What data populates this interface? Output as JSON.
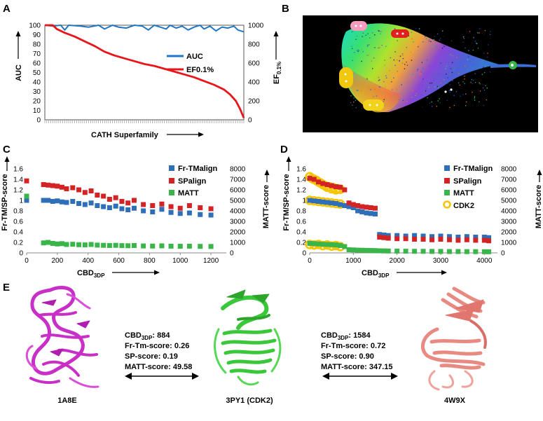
{
  "panel_letters": {
    "A": "A",
    "B": "B",
    "C": "C",
    "D": "D",
    "E": "E"
  },
  "colors": {
    "auc": "#1f77c4",
    "ef": "#e8161b",
    "fr_tmalign": "#2f6fb8",
    "spalign": "#d42325",
    "matt": "#3ab54a",
    "cdk2": "#f7c400"
  },
  "panelA": {
    "y_left_title": "AUC",
    "y_right_title_main": "EF",
    "y_right_title_sub": "0.1%",
    "x_title": "CATH Superfamily",
    "legend": [
      "AUC",
      "EF0.1%"
    ]
  },
  "panelC": {
    "y_left_title": "Fr-TM/SP-score",
    "y_right_title": "MATT-score",
    "x_title_main": "CBD",
    "x_title_sub": "3DP",
    "legend": [
      "Fr-TMalign",
      "SPalign",
      "MATT"
    ]
  },
  "panelD": {
    "y_left_title": "Fr-TM/SP-score",
    "y_right_title": "MATT-score",
    "x_title_main": "CBD",
    "x_title_sub": "3DP",
    "legend": [
      "Fr-TMalign",
      "SPalign",
      "MATT",
      "CDK2"
    ]
  },
  "panelE": {
    "structures": [
      {
        "label": "1A8E",
        "color": "#c72fc7"
      },
      {
        "label": "3PY1 (CDK2)",
        "color": "#3ac83a"
      },
      {
        "label": "4W9X",
        "color": "#e88a82"
      }
    ],
    "pair1": {
      "cbd_main": "CBD",
      "cbd_sub": "3DP",
      "cbd_value": ": 884",
      "fr_tm": "Fr-Tm-score: 0.26",
      "sp": "SP-score: 0.19",
      "matt": "MATT-score: 49.58"
    },
    "pair2": {
      "cbd_main": "CBD",
      "cbd_sub": "3DP",
      "cbd_value": ": 1584",
      "fr_tm": "Fr-Tm-score: 0.72",
      "sp": "SP-score: 0.90",
      "matt": "MATT-score: 347.15"
    }
  },
  "chart_data": [
    {
      "type": "line",
      "panel": "A",
      "xlabel": "CATH Superfamily",
      "ylabel": "AUC",
      "ylabel_right": "EF0.1%",
      "ylim": [
        0,
        100
      ],
      "ylim_right": [
        0,
        1000
      ],
      "yticks": [
        "0",
        "10",
        "20",
        "30",
        "40",
        "50",
        "60",
        "70",
        "80",
        "90",
        "100"
      ],
      "yticks_right": [
        "0",
        "200",
        "400",
        "600",
        "800",
        "1000"
      ],
      "legend_position": "center-right",
      "grid": false,
      "series": [
        {
          "name": "AUC",
          "axis": "left",
          "x": [
            0,
            4,
            8,
            10,
            12,
            18,
            22,
            27,
            30,
            34,
            37,
            41,
            45,
            49,
            52,
            55,
            58,
            61,
            63,
            66,
            69,
            72,
            75,
            78,
            80,
            83,
            86,
            89,
            92,
            95,
            97,
            100
          ],
          "values": [
            100,
            99,
            100,
            95,
            100,
            99,
            98,
            100,
            96,
            100,
            98,
            97,
            100,
            99,
            95,
            100,
            98,
            96,
            100,
            97,
            99,
            95,
            98,
            100,
            96,
            99,
            94,
            98,
            97,
            99,
            95,
            93
          ]
        },
        {
          "name": "EF0.1%",
          "axis": "right",
          "x": [
            0,
            4,
            6,
            10,
            15,
            20,
            25,
            30,
            35,
            40,
            45,
            50,
            55,
            60,
            65,
            70,
            75,
            80,
            85,
            90,
            93,
            96,
            98,
            100
          ],
          "values": [
            1000,
            1000,
            960,
            920,
            880,
            830,
            780,
            720,
            680,
            650,
            620,
            590,
            570,
            540,
            510,
            480,
            450,
            410,
            370,
            320,
            270,
            200,
            120,
            20
          ]
        }
      ]
    },
    {
      "type": "scatter",
      "panel": "C",
      "xlabel": "CBD3DP",
      "ylabel": "Fr-TM/SP-score",
      "ylabel_right": "MATT-score",
      "xlim": [
        0,
        1300
      ],
      "ylim": [
        0,
        1.6
      ],
      "ylim_right": [
        0,
        8000
      ],
      "xticks": [
        "0",
        "200",
        "400",
        "600",
        "800",
        "1000",
        "1200"
      ],
      "yticks": [
        "0",
        "0.2",
        "0.4",
        "0.6",
        "0.8",
        "1",
        "1.2",
        "1.4",
        "1.6"
      ],
      "yticks_right": [
        "0",
        "1000",
        "2000",
        "3000",
        "4000",
        "5000",
        "6000",
        "7000",
        "8000"
      ],
      "legend_position": "top-right",
      "grid": false,
      "series": [
        {
          "name": "Fr-TMalign",
          "axis": "left",
          "x": [
            0,
            110,
            140,
            170,
            200,
            230,
            260,
            300,
            340,
            380,
            420,
            460,
            500,
            540,
            580,
            620,
            660,
            700,
            760,
            820,
            880,
            940,
            1000,
            1060,
            1130,
            1200
          ],
          "values": [
            1.0,
            1.0,
            1.0,
            0.98,
            0.99,
            0.97,
            0.96,
            0.98,
            0.94,
            0.92,
            0.95,
            0.9,
            0.88,
            0.86,
            0.89,
            0.84,
            0.82,
            0.85,
            0.8,
            0.78,
            0.83,
            0.77,
            0.75,
            0.76,
            0.73,
            0.72
          ]
        },
        {
          "name": "SPalign",
          "axis": "left",
          "x": [
            0,
            110,
            140,
            170,
            200,
            230,
            260,
            300,
            340,
            380,
            420,
            460,
            500,
            540,
            580,
            620,
            660,
            700,
            760,
            820,
            880,
            940,
            1000,
            1060,
            1130,
            1200
          ],
          "values": [
            1.37,
            1.3,
            1.29,
            1.28,
            1.27,
            1.25,
            1.22,
            1.24,
            1.2,
            1.15,
            1.18,
            1.1,
            1.08,
            1.02,
            1.05,
            0.98,
            0.95,
            1.0,
            0.92,
            0.9,
            0.93,
            0.88,
            0.85,
            0.9,
            0.86,
            0.84
          ]
        },
        {
          "name": "MATT",
          "axis": "right",
          "x": [
            0,
            110,
            140,
            170,
            200,
            230,
            260,
            300,
            340,
            380,
            420,
            460,
            500,
            540,
            580,
            620,
            660,
            700,
            760,
            820,
            880,
            940,
            1000,
            1060,
            1130,
            1200
          ],
          "values": [
            5400,
            950,
            1000,
            900,
            850,
            880,
            800,
            820,
            780,
            760,
            800,
            740,
            720,
            700,
            720,
            690,
            680,
            700,
            660,
            650,
            670,
            640,
            630,
            640,
            620,
            610
          ]
        }
      ]
    },
    {
      "type": "scatter",
      "panel": "D",
      "xlabel": "CBD3DP",
      "ylabel": "Fr-TM/SP-score",
      "ylabel_right": "MATT-score",
      "xlim": [
        0,
        4300
      ],
      "ylim": [
        0,
        1.6
      ],
      "ylim_right": [
        0,
        8000
      ],
      "xticks": [
        "0",
        "1000",
        "2000",
        "3000",
        "4000"
      ],
      "yticks": [
        "0",
        "0.2",
        "0.4",
        "0.6",
        "0.8",
        "1",
        "1.2",
        "1.4",
        "1.6"
      ],
      "yticks_right": [
        "0",
        "1000",
        "2000",
        "3000",
        "4000",
        "5000",
        "6000",
        "7000",
        "8000"
      ],
      "legend_position": "top-right",
      "grid": false,
      "series": [
        {
          "name": "Fr-TMalign",
          "axis": "left",
          "x": [
            0,
            100,
            200,
            300,
            400,
            500,
            600,
            700,
            800,
            900,
            1000,
            1100,
            1200,
            1300,
            1400,
            1500,
            1600,
            1700,
            1800,
            2000,
            2200,
            2400,
            2600,
            2800,
            3000,
            3200,
            3400,
            3600,
            3800,
            4000,
            4100
          ],
          "values": [
            1.0,
            0.99,
            0.98,
            0.97,
            0.96,
            0.95,
            0.94,
            0.92,
            0.9,
            0.88,
            0.86,
            0.8,
            0.78,
            0.76,
            0.75,
            0.74,
            0.35,
            0.34,
            0.33,
            0.33,
            0.32,
            0.33,
            0.32,
            0.31,
            0.32,
            0.31,
            0.3,
            0.31,
            0.3,
            0.3,
            0.29
          ]
        },
        {
          "name": "SPalign",
          "axis": "left",
          "x": [
            0,
            100,
            200,
            300,
            400,
            500,
            600,
            700,
            800,
            900,
            1000,
            1100,
            1200,
            1300,
            1400,
            1500,
            1600,
            1700,
            1800,
            2000,
            2200,
            2400,
            2600,
            2800,
            3000,
            3200,
            3400,
            3600,
            3800,
            4000,
            4100
          ],
          "values": [
            1.42,
            1.4,
            1.35,
            1.32,
            1.3,
            1.28,
            1.26,
            1.25,
            1.2,
            0.95,
            0.92,
            0.9,
            0.88,
            0.87,
            0.86,
            0.85,
            0.3,
            0.29,
            0.28,
            0.27,
            0.27,
            0.26,
            0.26,
            0.25,
            0.26,
            0.25,
            0.24,
            0.25,
            0.24,
            0.24,
            0.23
          ]
        },
        {
          "name": "MATT",
          "axis": "right",
          "x": [
            0,
            100,
            200,
            300,
            400,
            500,
            600,
            700,
            800,
            900,
            1000,
            1100,
            1200,
            1300,
            1400,
            1500,
            1600,
            1700,
            1800,
            2000,
            2200,
            2400,
            2600,
            2800,
            3000,
            3200,
            3400,
            3600,
            3800,
            4000,
            4100
          ],
          "values": [
            900,
            880,
            850,
            820,
            800,
            780,
            760,
            700,
            600,
            300,
            280,
            260,
            250,
            240,
            230,
            220,
            200,
            190,
            180,
            170,
            160,
            150,
            150,
            140,
            140,
            130,
            130,
            120,
            120,
            110,
            110
          ]
        },
        {
          "name": "CDK2",
          "axis": "left",
          "x": [
            0,
            50,
            100,
            150,
            200,
            250,
            300,
            350,
            400,
            450,
            500,
            550,
            600,
            650,
            700,
            0,
            100,
            200,
            300,
            400,
            500,
            600,
            700,
            0,
            100,
            200,
            300,
            400,
            500,
            600,
            700
          ],
          "values": [
            1.45,
            1.42,
            1.4,
            1.38,
            1.35,
            1.33,
            1.3,
            1.28,
            1.25,
            1.26,
            1.22,
            1.24,
            1.2,
            1.22,
            1.21,
            1.0,
            0.99,
            0.98,
            0.97,
            0.96,
            0.95,
            0.94,
            0.93,
            0.16,
            0.15,
            0.16,
            0.14,
            0.15,
            0.13,
            0.14,
            0.12
          ]
        }
      ]
    }
  ]
}
